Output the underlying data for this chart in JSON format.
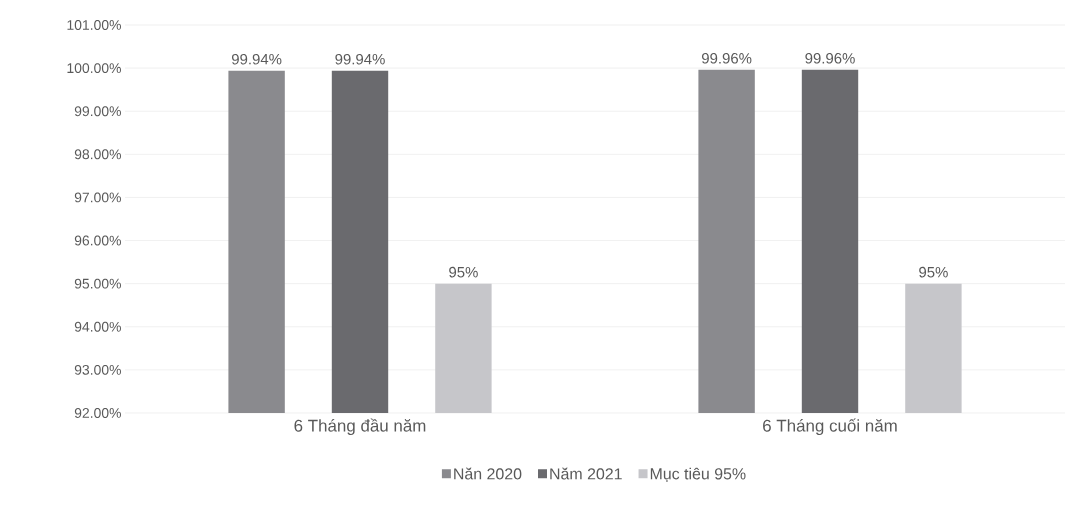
{
  "chart_data": {
    "type": "bar",
    "categories": [
      "6 Tháng đầu năm",
      "6 Tháng cuối năm"
    ],
    "series": [
      {
        "name": "Năn 2020",
        "color": "#8a8a8e",
        "values": [
          99.94,
          99.96
        ],
        "value_labels": [
          "99.94%",
          "99.96%"
        ]
      },
      {
        "name": "Năm 2021",
        "color": "#6a6a6e",
        "values": [
          99.94,
          99.96
        ],
        "value_labels": [
          "99.94%",
          "99.96%"
        ]
      },
      {
        "name": "Mục tiêu 95%",
        "color": "#c6c6ca",
        "values": [
          95,
          95
        ],
        "value_labels": [
          "95%",
          "95%"
        ]
      }
    ],
    "ylim": [
      92,
      101
    ],
    "yticks": [
      {
        "value": 92,
        "label": "92.00%"
      },
      {
        "value": 93,
        "label": "93.00%"
      },
      {
        "value": 94,
        "label": "94.00%"
      },
      {
        "value": 95,
        "label": "95.00%"
      },
      {
        "value": 96,
        "label": "96.00%"
      },
      {
        "value": 97,
        "label": "97.00%"
      },
      {
        "value": 98,
        "label": "98.00%"
      },
      {
        "value": 99,
        "label": "99.00%"
      },
      {
        "value": 100,
        "label": "100.00%"
      },
      {
        "value": 101,
        "label": "101.00%"
      }
    ],
    "grid": "y",
    "legend": "bottom"
  }
}
